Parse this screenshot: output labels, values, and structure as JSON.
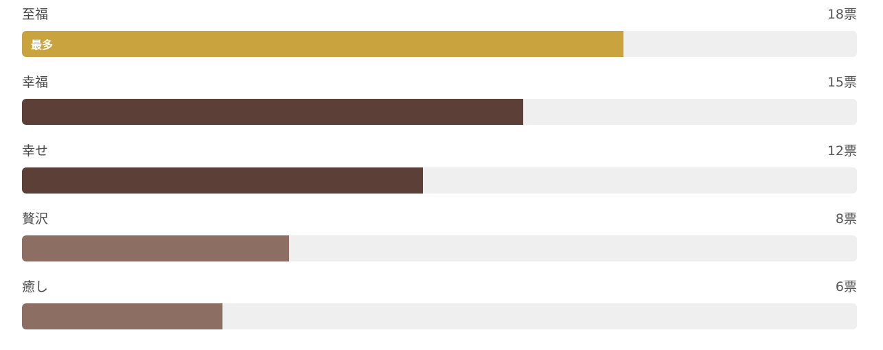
{
  "count_suffix": "票",
  "max_votes": 18,
  "top_badge": "最多",
  "options": [
    {
      "label": "至福",
      "votes": 18,
      "color": "#c9a33d",
      "is_top": true
    },
    {
      "label": "幸福",
      "votes": 15,
      "color": "#5c4037",
      "is_top": false
    },
    {
      "label": "幸せ",
      "votes": 12,
      "color": "#5c4037",
      "is_top": false
    },
    {
      "label": "贅沢",
      "votes": 8,
      "color": "#8d6e63",
      "is_top": false
    },
    {
      "label": "癒し",
      "votes": 6,
      "color": "#8d6e63",
      "is_top": false
    }
  ],
  "count_labels": [
    "18票",
    "15票",
    "12票",
    "8票",
    "6票"
  ]
}
